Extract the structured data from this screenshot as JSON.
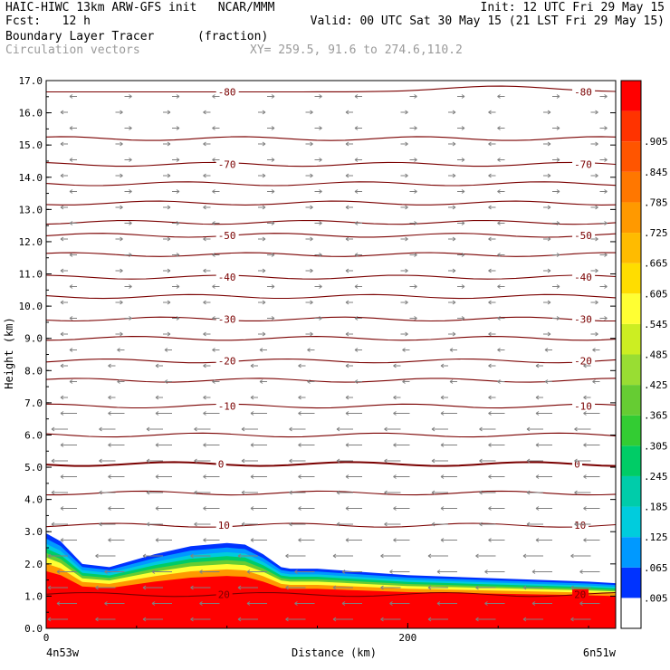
{
  "header": {
    "left1": "HAIC-HIWC 13km ARW-GFS init   NCAR/MMM",
    "right1": "Init: 12 UTC Fri 29 May 15",
    "left2": "Fcst:   12 h",
    "right2": "Valid: 00 UTC Sat 30 May 15 (21 LST Fri 29 May 15)",
    "field_name": "Boundary Layer Tracer",
    "field_units": "(fraction)",
    "vectors_label": "Circulation vectors",
    "xy_label": "XY= 259.5, 91.6 to 274.6,110.2"
  },
  "chart_data": {
    "type": "heatmap",
    "title": "Boundary Layer Tracer",
    "ylabel": "Height (km)",
    "xlabel": "Distance (km)",
    "xlim": [
      0,
      315
    ],
    "ylim": [
      0,
      17
    ],
    "y_ticks": [
      "0.0",
      "1.0",
      "2.0",
      "3.0",
      "4.0",
      "5.0",
      "6.0",
      "7.0",
      "8.0",
      "9.0",
      "10.0",
      "11.0",
      "12.0",
      "13.0",
      "14.0",
      "15.0",
      "16.0",
      "17.0"
    ],
    "x_ticks": [
      {
        "value": 0,
        "label": "0"
      },
      {
        "value": 200,
        "label": "200"
      }
    ],
    "x_endpoint_labels": {
      "left": "4n53w",
      "right": "6n51w"
    },
    "colorbar": {
      "labels": [
        ".005",
        ".065",
        ".125",
        ".185",
        ".245",
        ".305",
        ".365",
        ".425",
        ".485",
        ".545",
        ".605",
        ".665",
        ".725",
        ".785",
        ".845",
        ".905"
      ],
      "colors": [
        "#ffffff",
        "#0033ff",
        "#0099ff",
        "#00ccdd",
        "#00ccaa",
        "#00cc66",
        "#33cc33",
        "#66cc33",
        "#99dd33",
        "#ccee22",
        "#ffff33",
        "#ffdd00",
        "#ffbb00",
        "#ff9900",
        "#ff7700",
        "#ff5500",
        "#ff3300",
        "#ff0000"
      ]
    },
    "tracer_boundary": {
      "x": [
        0,
        8,
        20,
        35,
        60,
        80,
        100,
        110,
        120,
        130,
        135,
        150,
        200,
        250,
        300,
        315
      ],
      "top_km": [
        2.95,
        2.7,
        2.0,
        1.9,
        2.3,
        2.55,
        2.65,
        2.6,
        2.3,
        1.9,
        1.85,
        1.85,
        1.65,
        1.55,
        1.45,
        1.4
      ]
    },
    "temperature_contours": [
      {
        "label": "-80",
        "height_km": 16.65
      },
      {
        "label": "-70",
        "height_km": 14.4
      },
      {
        "label": "-50",
        "height_km": 12.2
      },
      {
        "label": "-40",
        "height_km": 10.9
      },
      {
        "label": "-30",
        "height_km": 9.6
      },
      {
        "label": "-20",
        "height_km": 8.3
      },
      {
        "label": "-10",
        "height_km": 6.9
      },
      {
        "label": "0",
        "height_km": 5.1
      },
      {
        "label": "10",
        "height_km": 3.2
      },
      {
        "label": "20",
        "height_km": 1.05
      }
    ],
    "contour_levels_km": [
      16.65,
      15.2,
      14.4,
      13.8,
      13.2,
      12.6,
      12.2,
      11.6,
      10.9,
      10.3,
      9.6,
      9.0,
      8.3,
      7.7,
      6.9,
      6.0,
      5.1,
      4.2,
      3.2,
      1.05
    ]
  }
}
